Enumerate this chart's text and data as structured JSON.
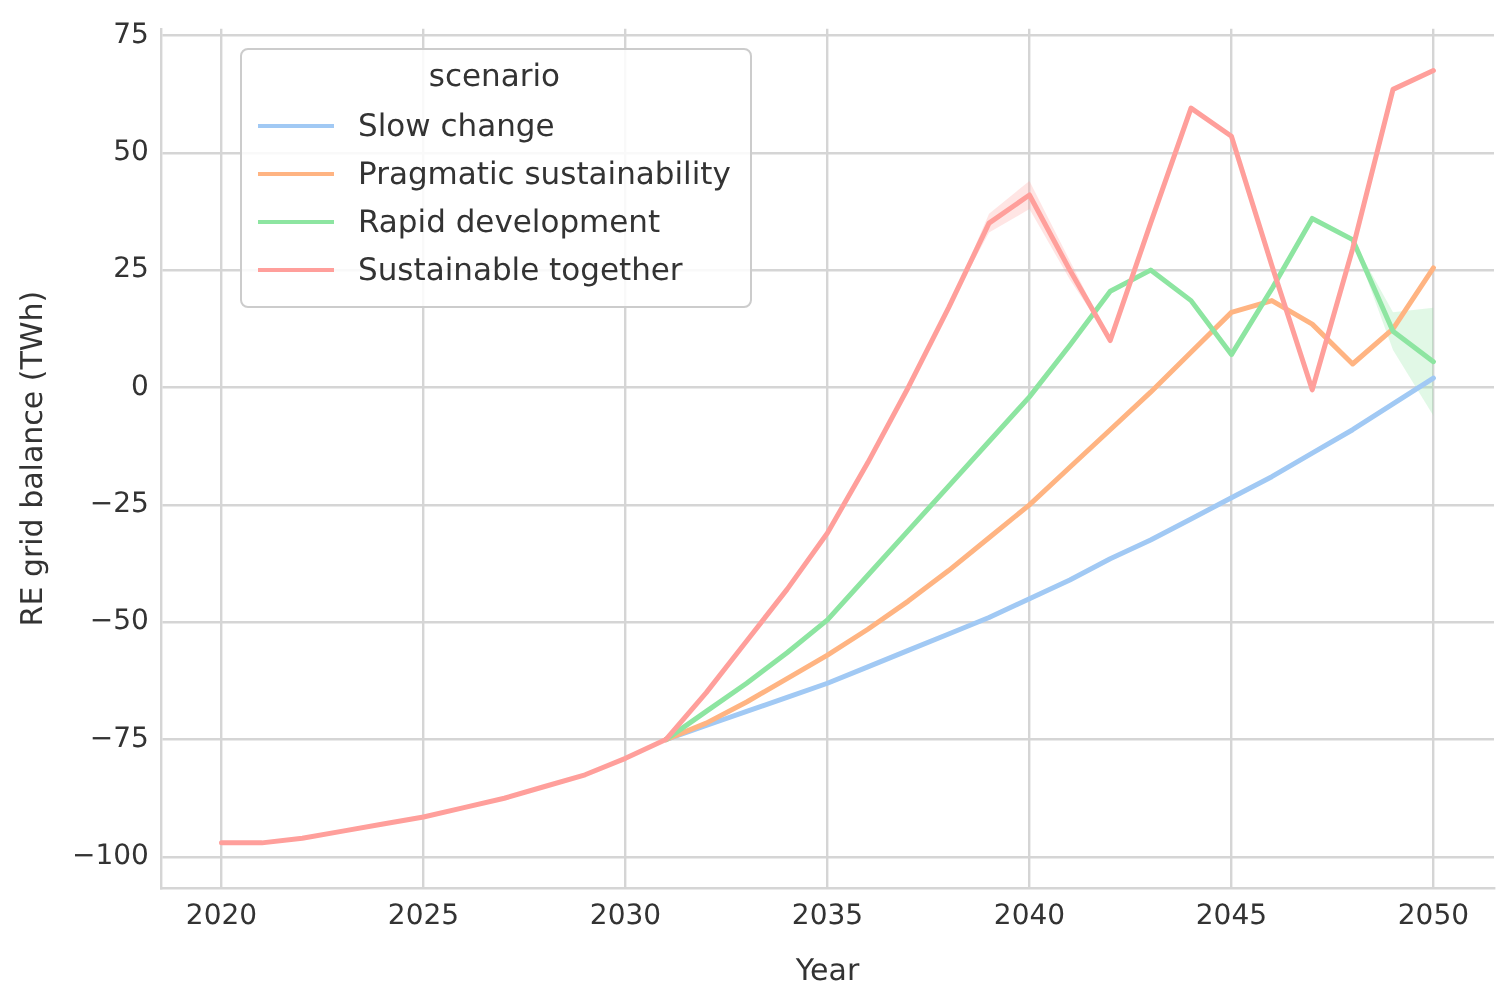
{
  "chart_data": {
    "type": "line",
    "xlabel": "Year",
    "ylabel": "RE grid balance (TWh)",
    "legend_title": "scenario",
    "legend": "top left",
    "grid": true,
    "marker": "none",
    "line_style": "solid",
    "x": [
      2020,
      2021,
      2022,
      2023,
      2024,
      2025,
      2026,
      2027,
      2028,
      2029,
      2030,
      2031,
      2032,
      2033,
      2034,
      2035,
      2036,
      2037,
      2038,
      2039,
      2040,
      2041,
      2042,
      2043,
      2044,
      2045,
      2046,
      2047,
      2048,
      2049,
      2050
    ],
    "xlim": [
      2018.5,
      2051.5
    ],
    "xticks": [
      2020,
      2025,
      2030,
      2035,
      2040,
      2045,
      2050
    ],
    "ylim": [
      -106.7,
      76.4
    ],
    "yticks": [
      -100,
      -75,
      -50,
      -25,
      0,
      25,
      50,
      75
    ],
    "series": [
      {
        "name": "Slow change",
        "color": "#a1c9f4",
        "values": [
          null,
          null,
          null,
          null,
          null,
          null,
          null,
          null,
          null,
          null,
          null,
          -75,
          -72,
          -69,
          -66,
          -63,
          -59.5,
          -56,
          -52.5,
          -49,
          -45,
          -41,
          -36.5,
          -32.5,
          -28,
          -23.5,
          -19,
          -14,
          -9,
          -3.5,
          2
        ]
      },
      {
        "name": "Pragmatic sustainability",
        "color": "#ffb482",
        "values": [
          null,
          null,
          null,
          null,
          null,
          null,
          null,
          null,
          null,
          null,
          null,
          -75,
          -71.5,
          -67,
          -62,
          -57,
          -51.5,
          -45.5,
          -39,
          -32,
          -25,
          -17,
          -9,
          -1,
          7.5,
          16,
          18.5,
          13.5,
          5,
          12.5,
          25.5
        ]
      },
      {
        "name": "Rapid development",
        "color": "#8de5a1",
        "values": [
          null,
          null,
          null,
          null,
          null,
          null,
          null,
          null,
          null,
          null,
          null,
          -75,
          -69,
          -63,
          -56.5,
          -49.5,
          -40,
          -30.5,
          -21,
          -11.5,
          -2,
          9,
          20.5,
          25,
          18.5,
          7,
          21,
          36,
          31.5,
          12,
          5.5
        ],
        "lower": [
          -97,
          -97,
          -96,
          -94.5,
          -93,
          -91.5,
          -89.5,
          -87.5,
          -85,
          -82.5,
          -79,
          -75,
          -69,
          -63,
          -56.5,
          -49.5,
          -40,
          -30.5,
          -21,
          -11.5,
          -2,
          9,
          20.5,
          25,
          18.5,
          7,
          21,
          36,
          31.5,
          8,
          -6
        ],
        "upper": [
          -97,
          -97,
          -96,
          -94.5,
          -93,
          -91.5,
          -89.5,
          -87.5,
          -85,
          -82.5,
          -79,
          -75,
          -69,
          -63,
          -56.5,
          -49.5,
          -40,
          -30.5,
          -21,
          -11.5,
          -2,
          9,
          20.5,
          25,
          18.5,
          7,
          21,
          36,
          31.5,
          16,
          17
        ]
      },
      {
        "name": "Sustainable together",
        "color": "#ff9f9b",
        "values": [
          -97,
          -97,
          -96,
          -94.5,
          -93,
          -91.5,
          -89.5,
          -87.5,
          -85,
          -82.5,
          -79,
          -75,
          -65,
          -54,
          -43,
          -31,
          -16,
          0,
          17,
          35,
          41,
          25,
          10,
          35,
          59.5,
          53.5,
          26,
          -0.5,
          29.5,
          63.5,
          67.5
        ],
        "lower": [
          -97,
          -97,
          -96,
          -94.5,
          -93,
          -91.5,
          -89.5,
          -87.5,
          -85,
          -82.5,
          -79,
          -75,
          -65,
          -54,
          -43,
          -31,
          -16,
          0,
          17,
          33,
          38,
          23,
          10,
          35,
          59.5,
          53.5,
          26,
          -0.5,
          29.5,
          63.5,
          67.5
        ],
        "upper": [
          -97,
          -97,
          -96,
          -94.5,
          -93,
          -91.5,
          -89.5,
          -87.5,
          -85,
          -82.5,
          -79,
          -75,
          -65,
          -54,
          -43,
          -31,
          -16,
          0,
          17,
          37,
          44,
          27,
          10,
          35,
          59.5,
          53.5,
          26,
          -0.5,
          29.5,
          63.5,
          67.5
        ]
      }
    ]
  }
}
